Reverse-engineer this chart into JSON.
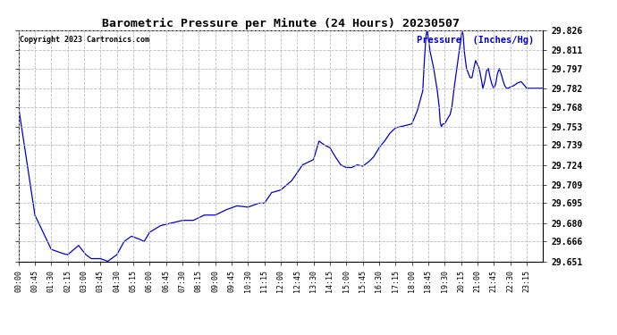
{
  "title": "Barometric Pressure per Minute (24 Hours) 20230507",
  "copyright": "Copyright 2023 Cartronics.com",
  "ylabel": "Pressure  (Inches/Hg)",
  "background_color": "#ffffff",
  "plot_background": "#ffffff",
  "line_color": "#0000cc",
  "grid_color": "#bbbbbb",
  "title_color": "#000000",
  "copyright_color": "#000000",
  "ylabel_color": "#0000cc",
  "ylim": [
    29.651,
    29.826
  ],
  "yticks": [
    29.651,
    29.666,
    29.68,
    29.695,
    29.709,
    29.724,
    29.739,
    29.753,
    29.768,
    29.782,
    29.797,
    29.811,
    29.826
  ],
  "xtick_labels": [
    "00:00",
    "00:45",
    "01:30",
    "02:15",
    "03:00",
    "03:45",
    "04:30",
    "05:15",
    "06:00",
    "06:45",
    "07:30",
    "08:15",
    "09:00",
    "09:45",
    "10:30",
    "11:15",
    "12:00",
    "12:45",
    "13:30",
    "14:15",
    "15:00",
    "15:45",
    "16:30",
    "17:15",
    "18:00",
    "18:45",
    "19:30",
    "20:15",
    "21:00",
    "21:45",
    "22:30",
    "23:15"
  ],
  "waypoints_x": [
    0,
    45,
    90,
    120,
    135,
    165,
    185,
    200,
    225,
    245,
    270,
    290,
    310,
    330,
    345,
    360,
    390,
    420,
    450,
    480,
    510,
    540,
    570,
    600,
    630,
    660,
    675,
    695,
    720,
    750,
    780,
    810,
    825,
    840,
    855,
    870,
    885,
    900,
    915,
    930,
    945,
    960,
    975,
    990,
    1005,
    1020,
    1035,
    1050,
    1065,
    1080,
    1095,
    1110,
    1113,
    1116,
    1119,
    1122,
    1125,
    1130,
    1140,
    1150,
    1155,
    1158,
    1161,
    1165,
    1170,
    1180,
    1185,
    1190,
    1195,
    1200,
    1210,
    1215,
    1218,
    1221,
    1224,
    1230,
    1240,
    1245,
    1250,
    1255,
    1260,
    1265,
    1270,
    1275,
    1280,
    1285,
    1290,
    1295,
    1300,
    1305,
    1310,
    1315,
    1320,
    1325,
    1330,
    1335,
    1340,
    1345,
    1350,
    1360,
    1370,
    1380,
    1390,
    1395,
    1440
  ],
  "waypoints_y": [
    29.768,
    29.686,
    29.66,
    29.657,
    29.656,
    29.663,
    29.656,
    29.653,
    29.653,
    29.651,
    29.656,
    29.666,
    29.67,
    29.668,
    29.666,
    29.673,
    29.678,
    29.68,
    29.682,
    29.682,
    29.686,
    29.686,
    29.69,
    29.693,
    29.692,
    29.695,
    29.695,
    29.703,
    29.705,
    29.712,
    29.724,
    29.728,
    29.742,
    29.739,
    29.737,
    29.73,
    29.724,
    29.722,
    29.722,
    29.724,
    29.723,
    29.726,
    29.73,
    29.737,
    29.742,
    29.748,
    29.752,
    29.753,
    29.754,
    29.755,
    29.765,
    29.78,
    29.797,
    29.81,
    29.822,
    29.826,
    29.82,
    29.81,
    29.797,
    29.78,
    29.768,
    29.756,
    29.753,
    29.755,
    29.755,
    29.76,
    29.762,
    29.768,
    29.78,
    29.79,
    29.81,
    29.82,
    29.826,
    29.822,
    29.81,
    29.797,
    29.79,
    29.79,
    29.797,
    29.803,
    29.8,
    29.797,
    29.79,
    29.782,
    29.787,
    29.795,
    29.797,
    29.79,
    29.785,
    29.782,
    29.785,
    29.793,
    29.797,
    29.793,
    29.788,
    29.784,
    29.782,
    29.782,
    29.783,
    29.784,
    29.786,
    29.787,
    29.784,
    29.782,
    29.782
  ]
}
